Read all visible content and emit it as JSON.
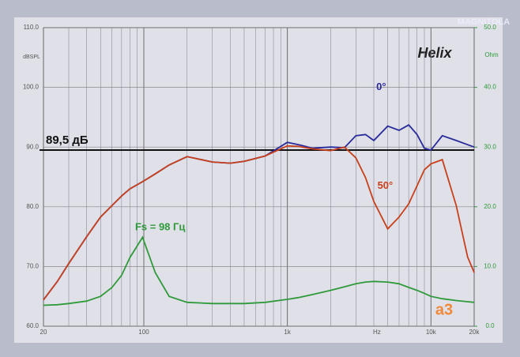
{
  "chart_data": {
    "type": "line",
    "title": "Helix",
    "y_label": "dBSPL",
    "y2_label": "Ohm",
    "x_label": "Hz",
    "watermark": "MAGNITOLA",
    "logo": "a3",
    "log_x": true,
    "grid": true,
    "minor_grid": true,
    "xlim": [
      20,
      20000
    ],
    "xticks": [
      20,
      100,
      {
        "value": 1000,
        "label": "1k"
      },
      {
        "value": 10000,
        "label": "10k"
      },
      {
        "value": 20000,
        "label": "20k"
      }
    ],
    "ylim": [
      60,
      110
    ],
    "yticks": [
      {
        "value": 60,
        "label": "60.0"
      },
      {
        "value": 70,
        "label": "70.0"
      },
      {
        "value": 80,
        "label": "80.0"
      },
      {
        "value": 90,
        "label": "90.0"
      },
      {
        "value": 100,
        "label": "100.0"
      },
      {
        "value": 110,
        "label": "110.0"
      }
    ],
    "y2lim": [
      0,
      50
    ],
    "y2ticks": [
      {
        "value": 0,
        "label": "0.0"
      },
      {
        "value": 10,
        "label": "10.0"
      },
      {
        "value": 20,
        "label": "20.0"
      },
      {
        "value": 30,
        "label": "30.0"
      },
      {
        "value": 40,
        "label": "40.0"
      },
      {
        "value": 50,
        "label": "50.0"
      }
    ],
    "reference": {
      "value": 89.5,
      "label": "89,5 дБ",
      "color": "#111111"
    },
    "x": [
      20,
      25,
      30,
      40,
      50,
      60,
      70,
      80,
      98,
      120,
      150,
      200,
      300,
      400,
      500,
      700,
      1000,
      1200,
      1500,
      2000,
      2500,
      3000,
      3500,
      4000,
      5000,
      6000,
      7000,
      8000,
      9000,
      10000,
      12000,
      15000,
      18000,
      20000
    ],
    "series": [
      {
        "name": "0°",
        "color": "#2a2a9a",
        "values": [
          64.4,
          67.5,
          70.5,
          75,
          78.3,
          80.2,
          81.8,
          83,
          84.2,
          85.5,
          87,
          88.4,
          87.5,
          87.3,
          87.6,
          88.5,
          90.8,
          90.4,
          89.8,
          90,
          89.9,
          91.9,
          92.1,
          91.1,
          93.5,
          92.8,
          93.7,
          92.1,
          89.8,
          89.5,
          91.9,
          91.1,
          90.4,
          90
        ]
      },
      {
        "name": "50°",
        "color": "#c8401c",
        "values": [
          64.4,
          67.5,
          70.5,
          75,
          78.3,
          80.2,
          81.8,
          83,
          84.2,
          85.5,
          87,
          88.4,
          87.5,
          87.3,
          87.6,
          88.5,
          90.2,
          90.1,
          89.7,
          89.4,
          90,
          88.2,
          84.9,
          80.9,
          76.3,
          78.3,
          80.5,
          83.5,
          86.2,
          87.2,
          87.9,
          80.2,
          71.6,
          69
        ]
      },
      {
        "name": "Fs = 98 Гц",
        "color": "#2f9a3a",
        "axis": "y2",
        "values": [
          3.5,
          3.6,
          3.8,
          4.2,
          5,
          6.5,
          8.5,
          11.5,
          14.9,
          9,
          5,
          4,
          3.8,
          3.8,
          3.8,
          4,
          4.5,
          4.8,
          5.3,
          6,
          6.6,
          7.1,
          7.4,
          7.5,
          7.4,
          7.1,
          6.5,
          6,
          5.5,
          5,
          4.6,
          4.3,
          4.1,
          4
        ]
      }
    ]
  }
}
